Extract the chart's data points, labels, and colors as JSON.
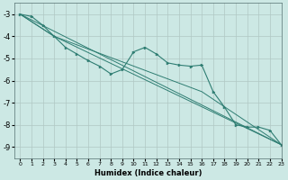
{
  "xlabel": "Humidex (Indice chaleur)",
  "ylabel": "",
  "bg_color": "#cce8e4",
  "grid_color": "#b0c8c4",
  "line_color": "#2e7d72",
  "xlim": [
    -0.5,
    23
  ],
  "ylim": [
    -9.5,
    -2.5
  ],
  "yticks": [
    -9,
    -8,
    -7,
    -6,
    -5,
    -4,
    -3
  ],
  "xticks": [
    0,
    1,
    2,
    3,
    4,
    5,
    6,
    7,
    8,
    9,
    10,
    11,
    12,
    13,
    14,
    15,
    16,
    17,
    18,
    19,
    20,
    21,
    22,
    23
  ],
  "series": [
    {
      "x": [
        0,
        1,
        2,
        3,
        4,
        5,
        6,
        7,
        8,
        9,
        10,
        11,
        12,
        13,
        14,
        15,
        16,
        17,
        18,
        19,
        20,
        21,
        22,
        23
      ],
      "y": [
        -3.0,
        -3.1,
        -3.5,
        -4.0,
        -4.5,
        -4.8,
        -5.1,
        -5.35,
        -5.7,
        -5.5,
        -4.7,
        -4.5,
        -4.8,
        -5.2,
        -5.3,
        -5.35,
        -5.3,
        -6.5,
        -7.2,
        -8.0,
        -8.1,
        -8.1,
        -8.25,
        -8.9
      ],
      "marker": true
    },
    {
      "x": [
        0,
        23
      ],
      "y": [
        -3.0,
        -8.9
      ],
      "marker": false
    },
    {
      "x": [
        0,
        3,
        23
      ],
      "y": [
        -3.0,
        -4.0,
        -8.9
      ],
      "marker": false
    },
    {
      "x": [
        0,
        3,
        16,
        23
      ],
      "y": [
        -3.0,
        -4.0,
        -6.5,
        -8.9
      ],
      "marker": false
    }
  ]
}
